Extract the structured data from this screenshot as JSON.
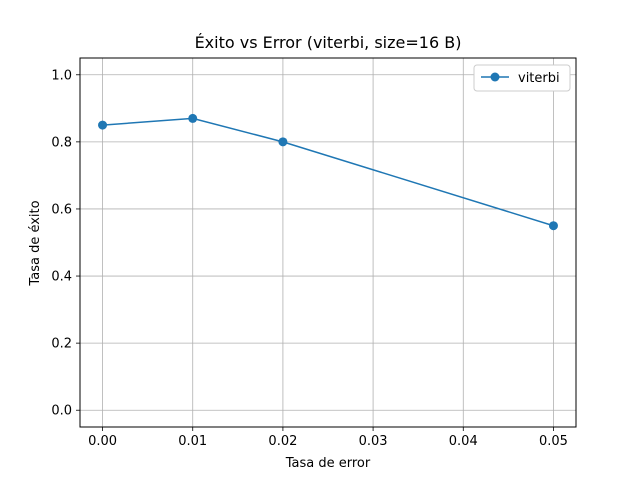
{
  "chart_data": {
    "type": "line",
    "title": "Éxito vs Error (viterbi, size=16 B)",
    "xlabel": "Tasa de error",
    "ylabel": "Tasa de éxito",
    "xlim": [
      -0.0025,
      0.0525
    ],
    "ylim": [
      -0.05,
      1.05
    ],
    "xticks": [
      0.0,
      0.01,
      0.02,
      0.03,
      0.04,
      0.05
    ],
    "xtick_labels": [
      "0.00",
      "0.01",
      "0.02",
      "0.03",
      "0.04",
      "0.05"
    ],
    "yticks": [
      0.0,
      0.2,
      0.4,
      0.6,
      0.8,
      1.0
    ],
    "ytick_labels": [
      "0.0",
      "0.2",
      "0.4",
      "0.6",
      "0.8",
      "1.0"
    ],
    "grid": true,
    "legend_position": "top-right",
    "series": [
      {
        "name": "viterbi",
        "color": "#1f77b4",
        "marker": "circle",
        "x": [
          0.0,
          0.01,
          0.02,
          0.05
        ],
        "y": [
          0.85,
          0.87,
          0.8,
          0.55
        ]
      }
    ]
  }
}
